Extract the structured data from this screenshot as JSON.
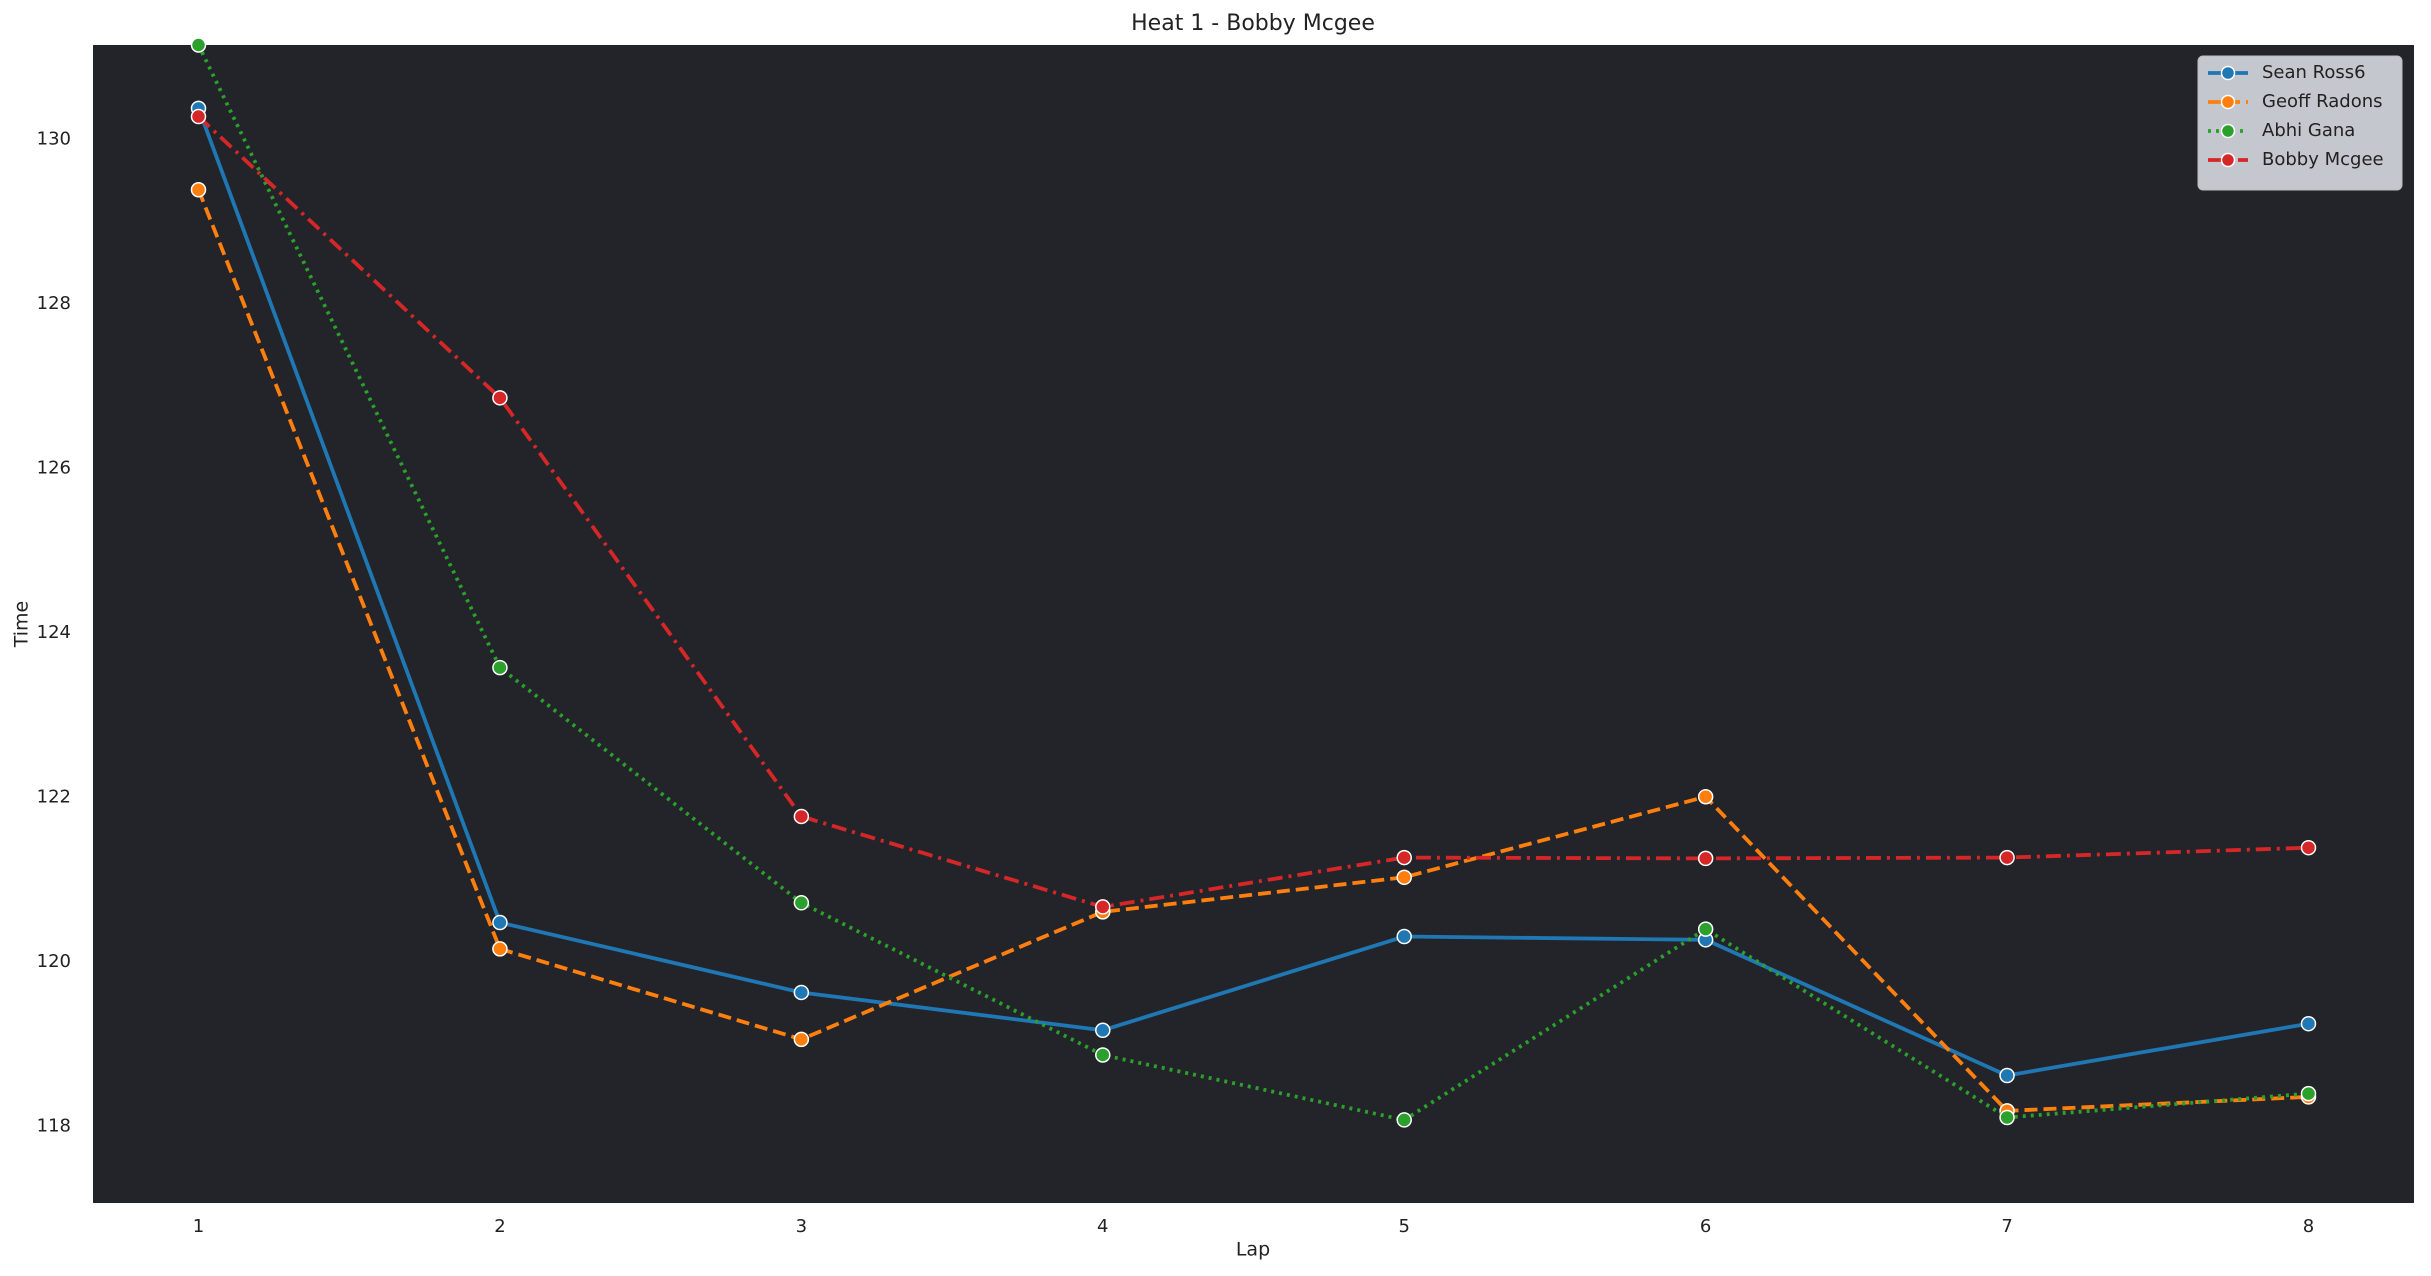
{
  "chart_data": {
    "type": "line",
    "title": "Heat 1 - Bobby Mcgee",
    "x_label": "Lap",
    "y_label": "Time",
    "x": [
      1,
      2,
      3,
      4,
      5,
      6,
      7,
      8
    ],
    "series": [
      {
        "name": "Sean Ross6",
        "color": "#1f77b4",
        "linestyle": "solid",
        "values": [
          130.38,
          120.48,
          119.63,
          119.17,
          120.31,
          120.27,
          118.62,
          119.25
        ]
      },
      {
        "name": "Geoff Radons",
        "color": "#ff7f0e",
        "linestyle": "dashed",
        "values": [
          129.39,
          120.16,
          119.06,
          120.61,
          121.03,
          122.01,
          118.19,
          118.36
        ]
      },
      {
        "name": "Abhi Gana",
        "color": "#2ca02c",
        "linestyle": "dotted",
        "values": [
          131.15,
          123.58,
          120.72,
          118.87,
          118.08,
          120.4,
          118.11,
          118.4
        ]
      },
      {
        "name": "Bobby Mcgee",
        "color": "#d62728",
        "linestyle": "dashdot",
        "values": [
          130.28,
          126.86,
          121.77,
          120.67,
          121.27,
          121.26,
          121.27,
          121.39
        ]
      }
    ],
    "xlim": [
      0.65,
      8.35
    ],
    "ylim": [
      117.07,
      131.15
    ],
    "xticks": [
      1,
      2,
      3,
      4,
      5,
      6,
      7,
      8
    ],
    "yticks": [
      118,
      120,
      122,
      124,
      126,
      128,
      130
    ],
    "grid": false,
    "legend": "upper right",
    "plot_background": "#222429"
  }
}
